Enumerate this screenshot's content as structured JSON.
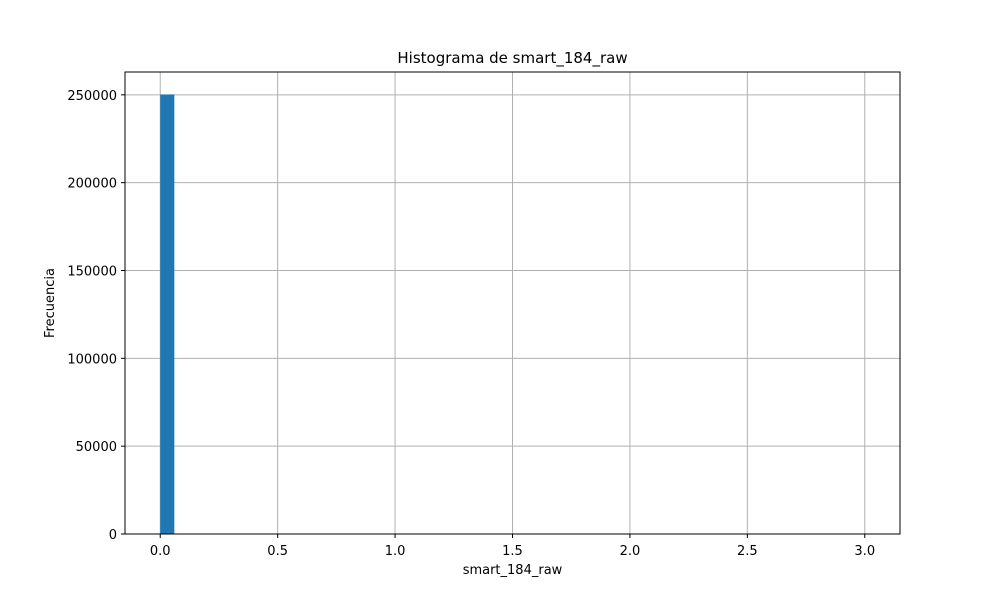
{
  "chart_data": {
    "type": "bar",
    "title": "Histograma de smart_184_raw",
    "xlabel": "smart_184_raw",
    "ylabel": "Frecuencia",
    "xlim": [
      -0.15,
      3.15
    ],
    "ylim": [
      0,
      263000
    ],
    "xticks": [
      0.0,
      0.5,
      1.0,
      1.5,
      2.0,
      2.5,
      3.0
    ],
    "xtick_labels": [
      "0.0",
      "0.5",
      "1.0",
      "1.5",
      "2.0",
      "2.5",
      "3.0"
    ],
    "yticks": [
      0,
      50000,
      100000,
      150000,
      200000,
      250000
    ],
    "ytick_labels": [
      "0",
      "50000",
      "100000",
      "150000",
      "200000",
      "250000"
    ],
    "grid": true,
    "bins": [
      {
        "x0": 0.0,
        "x1": 0.06,
        "value": 250200
      }
    ],
    "colors": {
      "bar": "#1f77b4",
      "grid": "#b0b0b0",
      "axes": "#000000"
    }
  }
}
